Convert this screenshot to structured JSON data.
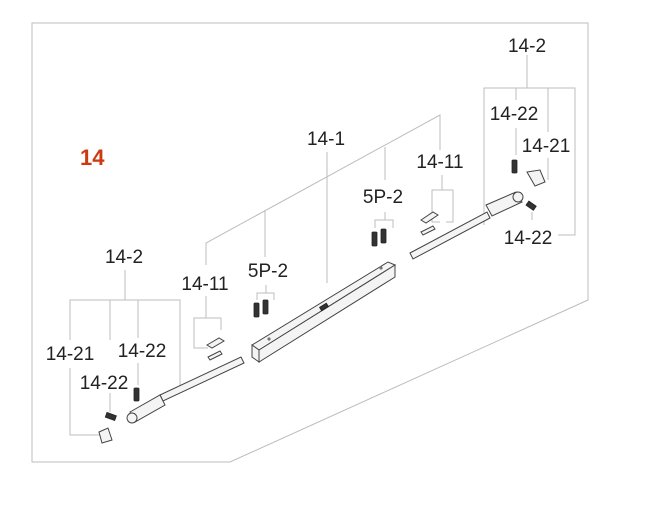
{
  "diagram": {
    "section_number": "14",
    "section_color": "#cc3a10",
    "labels": {
      "assembly_right": "14-2",
      "screw_right_upper": "14-22",
      "yoke_right": "14-21",
      "screw_right_lower": "14-22",
      "main_bar": "14-1",
      "key_right": "14-11",
      "bolt_right": "5P-2",
      "bolt_left": "5P-2",
      "key_left": "14-11",
      "assembly_left": "14-2",
      "yoke_left": "14-21",
      "screw_left_upper": "14-22",
      "screw_left_lower": "14-22"
    }
  }
}
